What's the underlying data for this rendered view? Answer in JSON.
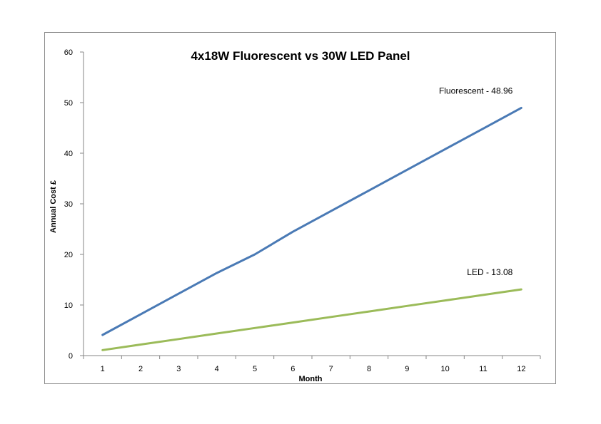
{
  "chart_data": {
    "type": "line",
    "title": "4x18W Fluorescent vs 30W LED Panel",
    "xlabel": "Month",
    "ylabel": "Annual Cost £",
    "x": [
      1,
      2,
      3,
      4,
      5,
      6,
      7,
      8,
      9,
      10,
      11,
      12
    ],
    "categories": [
      "1",
      "2",
      "3",
      "4",
      "5",
      "6",
      "7",
      "8",
      "9",
      "10",
      "11",
      "12"
    ],
    "ylim": [
      0,
      60
    ],
    "yticks": [
      "0",
      "10",
      "20",
      "30",
      "40",
      "50",
      "60"
    ],
    "grid": false,
    "legend": "none",
    "series": [
      {
        "label_text": "Fluorescent - 48.96",
        "color": "#4a7ab5",
        "values": [
          4.08,
          8.16,
          12.24,
          16.32,
          20.0,
          24.48,
          28.56,
          32.64,
          36.72,
          40.8,
          44.88,
          48.96
        ]
      },
      {
        "label_text": "LED - 13.08",
        "color": "#9bbb59",
        "values": [
          1.09,
          2.18,
          3.27,
          4.36,
          5.45,
          6.54,
          7.63,
          8.72,
          9.81,
          10.9,
          11.99,
          13.08
        ]
      }
    ]
  }
}
